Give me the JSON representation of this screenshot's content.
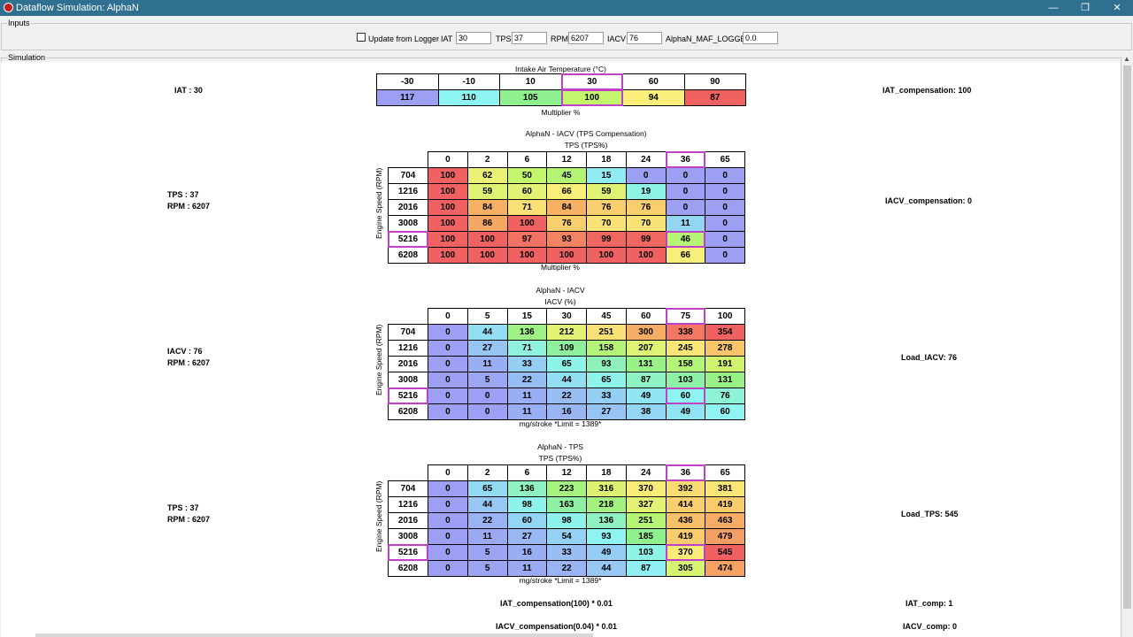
{
  "window": {
    "title": "Dataflow Simulation: AlphaN",
    "minimize": "—",
    "maximize": "❐",
    "close": "✕",
    "icon": "app-icon"
  },
  "inputs": {
    "legend": "Inputs",
    "update_label": "Update from Logger",
    "update_checked": false,
    "iat_label": "IAT",
    "iat_value": "30",
    "tps_label": "TPS",
    "tps_value": "37",
    "rpm_label": "RPM",
    "rpm_value": "6207",
    "iacv_label": "IACV",
    "iacv_value": "76",
    "maf_label": "AlphaN_MAF_LOGGED",
    "maf_value": "0.0"
  },
  "simulation": {
    "legend": "Simulation",
    "iat_block": {
      "left_text": "IAT : 30",
      "right_text": "IAT_compensation: 100"
    },
    "tps_comp_block": {
      "left_line1": "TPS : 37",
      "left_line2": "RPM : 6207",
      "right_text": "IACV_compensation: 0"
    },
    "iacv_block": {
      "left_line1": "IACV : 76",
      "left_line2": "RPM : 6207",
      "right_text": "Load_IACV: 76"
    },
    "tps_block": {
      "left_line1": "TPS : 37",
      "left_line2": "RPM : 6207",
      "right_text": "Load_TPS: 545"
    },
    "formulas": [
      {
        "left": "IAT_compensation(100) * 0.01",
        "right": "IAT_comp: 1"
      },
      {
        "left": "IACV_compensation(0.04) * 0.01",
        "right": "IACV_comp: 0"
      }
    ]
  },
  "tables": [
    {
      "id": "iat",
      "title": "Intake Air Temperature (°C)",
      "footer": "Multiplier %",
      "cols": [
        "-30",
        "-10",
        "10",
        "30",
        "60",
        "90"
      ],
      "values": [
        117,
        110,
        105,
        100,
        94,
        87
      ],
      "colors": [
        "#9d9ff3",
        "#8ef3f3",
        "#8ef08e",
        "#c3f56d",
        "#f9ef7a",
        "#f06262"
      ],
      "highlight_col": 3
    },
    {
      "id": "tps_comp",
      "title": "AlphaN - IACV (TPS Compensation)",
      "subtitle": "TPS (TPS%)",
      "ylabel": "Engine Speed (RPM)",
      "footer": "Multiplier %",
      "cols": [
        "0",
        "2",
        "6",
        "12",
        "18",
        "24",
        "36",
        "65"
      ],
      "rows": [
        "704",
        "1216",
        "2016",
        "3008",
        "5216",
        "6208"
      ],
      "values": [
        [
          100,
          62,
          50,
          45,
          15,
          0,
          0,
          0
        ],
        [
          100,
          59,
          60,
          66,
          59,
          19,
          0,
          0
        ],
        [
          100,
          84,
          71,
          84,
          76,
          76,
          0,
          0
        ],
        [
          100,
          86,
          100,
          76,
          70,
          70,
          11,
          0
        ],
        [
          100,
          100,
          97,
          93,
          99,
          99,
          46,
          0
        ],
        [
          100,
          100,
          100,
          100,
          100,
          100,
          66,
          0
        ]
      ],
      "highlight_col": 6,
      "highlight_row": 4
    },
    {
      "id": "iacv",
      "title": "AlphaN - IACV",
      "subtitle": "IACV (%)",
      "ylabel": "Engine Speed (RPM)",
      "footer": "mg/stroke *Limit = 1389*",
      "cols": [
        "0",
        "5",
        "15",
        "30",
        "45",
        "60",
        "75",
        "100"
      ],
      "rows": [
        "704",
        "1216",
        "2016",
        "3008",
        "5216",
        "6208"
      ],
      "values": [
        [
          0,
          44,
          136,
          212,
          251,
          300,
          338,
          354
        ],
        [
          0,
          27,
          71,
          109,
          158,
          207,
          245,
          278
        ],
        [
          0,
          11,
          33,
          65,
          93,
          131,
          158,
          191
        ],
        [
          0,
          5,
          22,
          44,
          65,
          87,
          103,
          131
        ],
        [
          0,
          0,
          11,
          22,
          33,
          49,
          60,
          76
        ],
        [
          0,
          0,
          11,
          16,
          27,
          38,
          49,
          60
        ]
      ],
      "highlight_col": 6,
      "highlight_row": 4
    },
    {
      "id": "tps",
      "title": "AlphaN - TPS",
      "subtitle": "TPS (TPS%)",
      "ylabel": "Engine Speed (RPM)",
      "footer": "mg/stroke *Limit = 1389*",
      "cols": [
        "0",
        "2",
        "6",
        "12",
        "18",
        "24",
        "36",
        "65"
      ],
      "rows": [
        "704",
        "1216",
        "2016",
        "3008",
        "5216",
        "6208"
      ],
      "values": [
        [
          0,
          65,
          136,
          223,
          316,
          370,
          392,
          381
        ],
        [
          0,
          44,
          98,
          163,
          218,
          327,
          414,
          419
        ],
        [
          0,
          22,
          60,
          98,
          136,
          251,
          436,
          463
        ],
        [
          0,
          11,
          27,
          54,
          93,
          185,
          419,
          479
        ],
        [
          0,
          5,
          16,
          33,
          49,
          103,
          370,
          545
        ],
        [
          0,
          5,
          11,
          22,
          44,
          87,
          305,
          474
        ]
      ],
      "highlight_col": 6,
      "highlight_row": 4
    }
  ]
}
